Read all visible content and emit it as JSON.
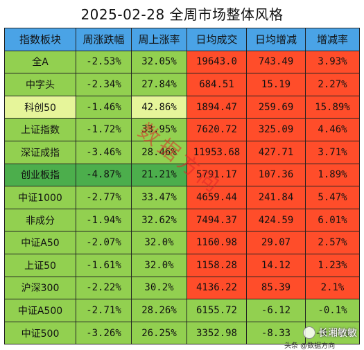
{
  "title": "2025-02-28 全周市场整体风格",
  "headers": [
    "指数板块",
    "周涨跌幅",
    "周上涨率",
    "日均成交",
    "日均增减",
    "增减率"
  ],
  "rows": [
    {
      "name": "全A",
      "change": "-2.53%",
      "rise": "32.05%",
      "volume": "19643.0",
      "diff": "743.49",
      "rate": "3.93%",
      "name_bg": "#92d050",
      "rate_bg": "#ff4d2a"
    },
    {
      "name": "中字头",
      "change": "-2.34%",
      "rise": "27.84%",
      "volume": "684.51",
      "diff": "15.19",
      "rate": "2.27%",
      "name_bg": "#92d050",
      "rate_bg": "#ff4d2a"
    },
    {
      "name": "科创50",
      "change": "-1.46%",
      "rise": "42.86%",
      "volume": "1894.47",
      "diff": "259.69",
      "rate": "15.89%",
      "name_bg": "#e6f59a",
      "rate_bg": "#ff4d2a"
    },
    {
      "name": "上证指数",
      "change": "-1.72%",
      "rise": "33.95%",
      "volume": "7620.72",
      "diff": "325.09",
      "rate": "4.46%",
      "name_bg": "#92d050",
      "rate_bg": "#ff4d2a"
    },
    {
      "name": "深证成指",
      "change": "-3.46%",
      "rise": "28.46%",
      "volume": "11953.68",
      "diff": "427.71",
      "rate": "3.71%",
      "name_bg": "#92d050",
      "rate_bg": "#ff4d2a"
    },
    {
      "name": "创业板指",
      "change": "-4.87%",
      "rise": "21.21%",
      "volume": "5791.17",
      "diff": "107.36",
      "rate": "1.89%",
      "name_bg": "#4cae4c",
      "rate_bg": "#ff4d2a"
    },
    {
      "name": "中证1000",
      "change": "-2.77%",
      "rise": "33.47%",
      "volume": "4659.44",
      "diff": "241.84",
      "rate": "5.47%",
      "name_bg": "#92d050",
      "rate_bg": "#ff4d2a"
    },
    {
      "name": "非成分",
      "change": "-1.94%",
      "rise": "32.62%",
      "volume": "7494.37",
      "diff": "424.59",
      "rate": "6.01%",
      "name_bg": "#92d050",
      "rate_bg": "#ff4d2a"
    },
    {
      "name": "中证A50",
      "change": "-2.07%",
      "rise": "32.0%",
      "volume": "1160.98",
      "diff": "29.07",
      "rate": "2.57%",
      "name_bg": "#92d050",
      "rate_bg": "#ff4d2a"
    },
    {
      "name": "上证50",
      "change": "-1.61%",
      "rise": "32.0%",
      "volume": "1158.28",
      "diff": "14.12",
      "rate": "1.23%",
      "name_bg": "#92d050",
      "rate_bg": "#ff4d2a"
    },
    {
      "name": "沪深300",
      "change": "-2.22%",
      "rise": "30.2%",
      "volume": "4136.22",
      "diff": "85.39",
      "rate": "2.1%",
      "name_bg": "#92d050",
      "rate_bg": "#ff4d2a"
    },
    {
      "name": "中证A500",
      "change": "-2.71%",
      "rise": "28.26%",
      "volume": "6155.72",
      "diff": "-6.12",
      "rate": "-0.1%",
      "name_bg": "#92d050",
      "rate_bg": "#92d050"
    },
    {
      "name": "中证500",
      "change": "-3.26%",
      "rise": "26.25%",
      "volume": "3352.98",
      "diff": "-8.33",
      "rate": "-0.25%",
      "name_bg": "#92d050",
      "rate_bg": "#92d050"
    }
  ],
  "colors": {
    "header": "#4aa3e6",
    "green": "#92d050",
    "red": "#ff4d2a",
    "light": "#e6f59a",
    "dark_green": "#4cae4c"
  },
  "watermark": "数据方向",
  "credit": "长湘敏敏",
  "footer": "头条 @数据方向"
}
